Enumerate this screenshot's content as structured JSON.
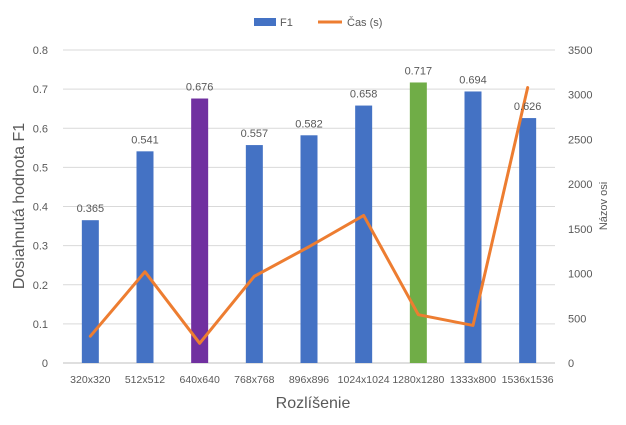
{
  "chart_data": {
    "type": "bar",
    "categories": [
      "320x320",
      "512x512",
      "640x640",
      "768x768",
      "896x896",
      "1024x1024",
      "1280x1280",
      "1333x800",
      "1536x1536"
    ],
    "series": [
      {
        "name": "F1",
        "kind": "bar",
        "axis": "left",
        "color": "#4472C4",
        "values": [
          0.365,
          0.541,
          0.676,
          0.557,
          0.582,
          0.658,
          0.717,
          0.694,
          0.626
        ],
        "point_colors": [
          "#4472C4",
          "#4472C4",
          "#7030A0",
          "#4472C4",
          "#4472C4",
          "#4472C4",
          "#70AD47",
          "#4472C4",
          "#4472C4"
        ]
      },
      {
        "name": "Čas (s)",
        "kind": "line",
        "axis": "right",
        "color": "#ED7D31",
        "values": [
          300,
          1020,
          220,
          970,
          1300,
          1650,
          540,
          420,
          3080
        ]
      }
    ],
    "data_labels": [
      "0.365",
      "0.541",
      "0.676",
      "0.557",
      "0.582",
      "0.658",
      "0.717",
      "0.694",
      "0.626"
    ],
    "xlabel": "Rozlíšenie",
    "ylabel": "Dosiahnutá hodnota F1",
    "y2label": "Názov osi",
    "ylim": [
      0,
      0.8
    ],
    "y2lim": [
      0,
      3500
    ],
    "yticks": [
      "0",
      "0.1",
      "0.2",
      "0.3",
      "0.4",
      "0.5",
      "0.6",
      "0.7",
      "0.8"
    ],
    "y2ticks": [
      "0",
      "500",
      "1000",
      "1500",
      "2000",
      "2500",
      "3000",
      "3500"
    ],
    "grid": true,
    "legend_position": "top"
  }
}
